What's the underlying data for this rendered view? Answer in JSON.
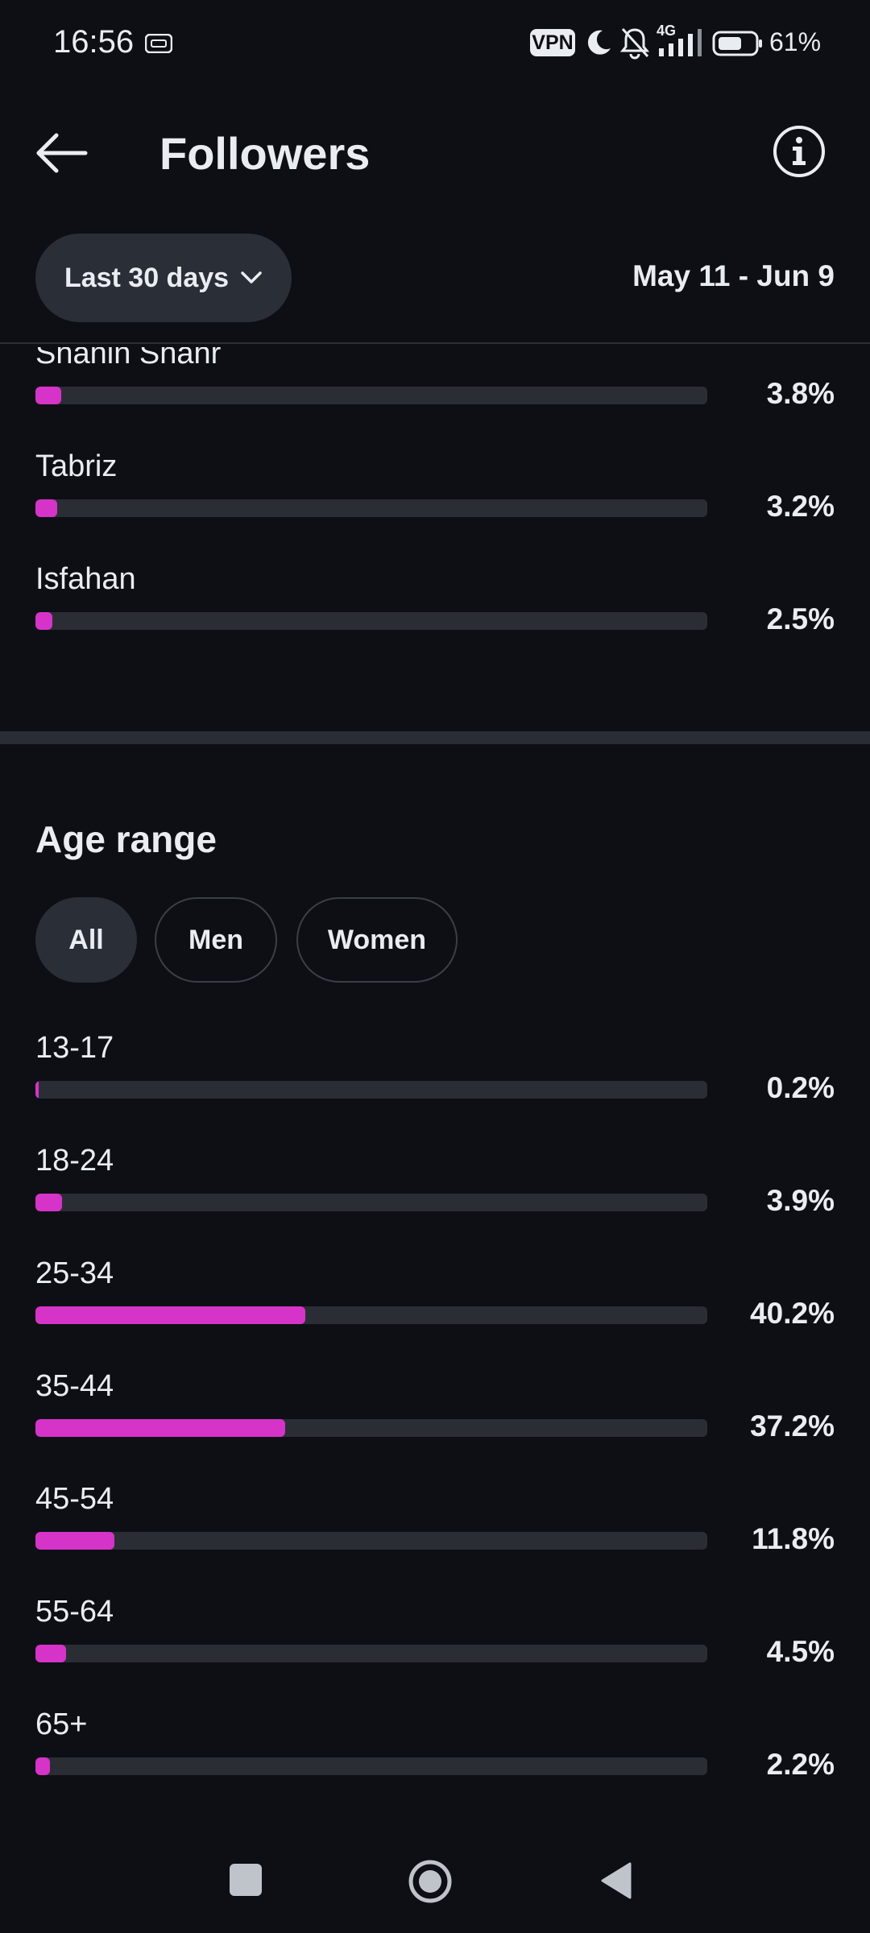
{
  "status": {
    "time": "16:56",
    "vpn": "VPN",
    "network": "4G",
    "battery": "61%"
  },
  "header": {
    "title": "Followers"
  },
  "filter": {
    "range_label": "Last 30 days",
    "date_range": "May 11 - Jun 9"
  },
  "locations": [
    {
      "label": "Shahin Shahr",
      "value": "3.8%",
      "fraction": 0.038
    },
    {
      "label": "Tabriz",
      "value": "3.2%",
      "fraction": 0.032
    },
    {
      "label": "Isfahan",
      "value": "2.5%",
      "fraction": 0.025
    }
  ],
  "age": {
    "title": "Age range",
    "chips": [
      "All",
      "Men",
      "Women"
    ],
    "ranges": [
      {
        "label": "13-17",
        "value": "0.2%",
        "fraction": 0.002
      },
      {
        "label": "18-24",
        "value": "3.9%",
        "fraction": 0.039
      },
      {
        "label": "25-34",
        "value": "40.2%",
        "fraction": 0.402
      },
      {
        "label": "35-44",
        "value": "37.2%",
        "fraction": 0.372
      },
      {
        "label": "45-54",
        "value": "11.8%",
        "fraction": 0.118
      },
      {
        "label": "55-64",
        "value": "4.5%",
        "fraction": 0.045
      },
      {
        "label": "65+",
        "value": "2.2%",
        "fraction": 0.022
      }
    ]
  },
  "colors": {
    "background": "#0d0f14",
    "accent": "#d633c9",
    "track": "#2a2e34"
  }
}
